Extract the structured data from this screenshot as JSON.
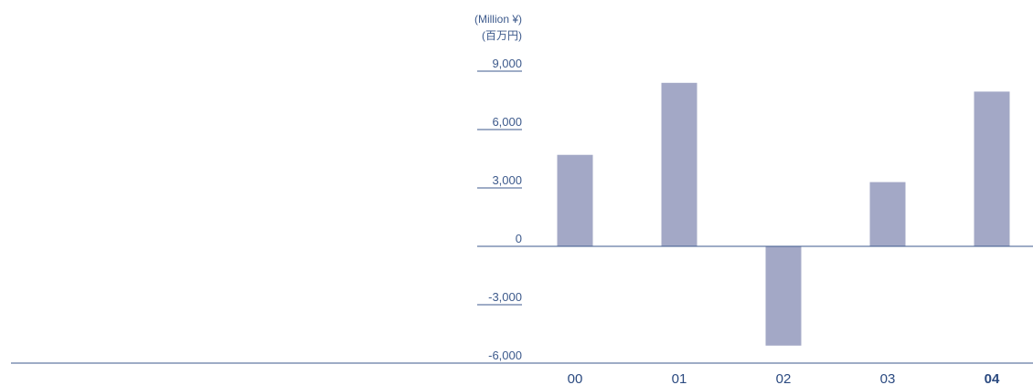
{
  "chart_data": {
    "type": "bar",
    "unit_en": "(Million ¥)",
    "unit_ja": "(百万円)",
    "categories": [
      "00",
      "01",
      "02",
      "03",
      "04"
    ],
    "highlight_category": "04",
    "values": [
      4700,
      8400,
      -5100,
      3300,
      7950
    ],
    "ylim": [
      -6000,
      9000
    ],
    "yticks": [
      9000,
      6000,
      3000,
      0,
      -3000,
      -6000
    ],
    "ytick_labels": [
      "9,000",
      "6,000",
      "3,000",
      "0",
      "-3,000",
      "-6,000"
    ],
    "bar_color": "#a3a8c6",
    "axis_color": "#3d5a8c"
  }
}
